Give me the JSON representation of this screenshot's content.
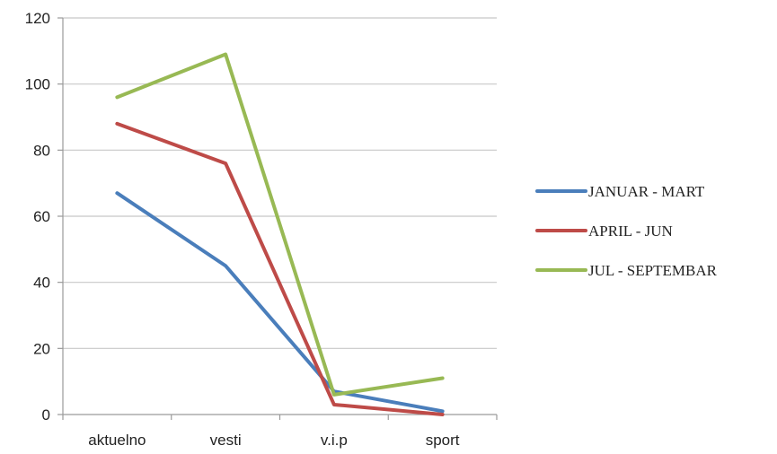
{
  "chart_data": {
    "type": "line",
    "categories": [
      "aktuelno",
      "vesti",
      "v.i.p",
      "sport"
    ],
    "ylim": [
      0,
      120
    ],
    "yticks": [
      0,
      20,
      40,
      60,
      80,
      100,
      120
    ],
    "grid": true,
    "legend_position": "right",
    "series": [
      {
        "name": "JANUAR - MART",
        "color": "#4a7ebb",
        "values": [
          67,
          45,
          7,
          1
        ]
      },
      {
        "name": "APRIL - JUN",
        "color": "#be4b48",
        "values": [
          88,
          76,
          3,
          0
        ]
      },
      {
        "name": "JUL - SEPTEMBAR",
        "color": "#98b954",
        "values": [
          96,
          109,
          6,
          11
        ]
      }
    ]
  }
}
